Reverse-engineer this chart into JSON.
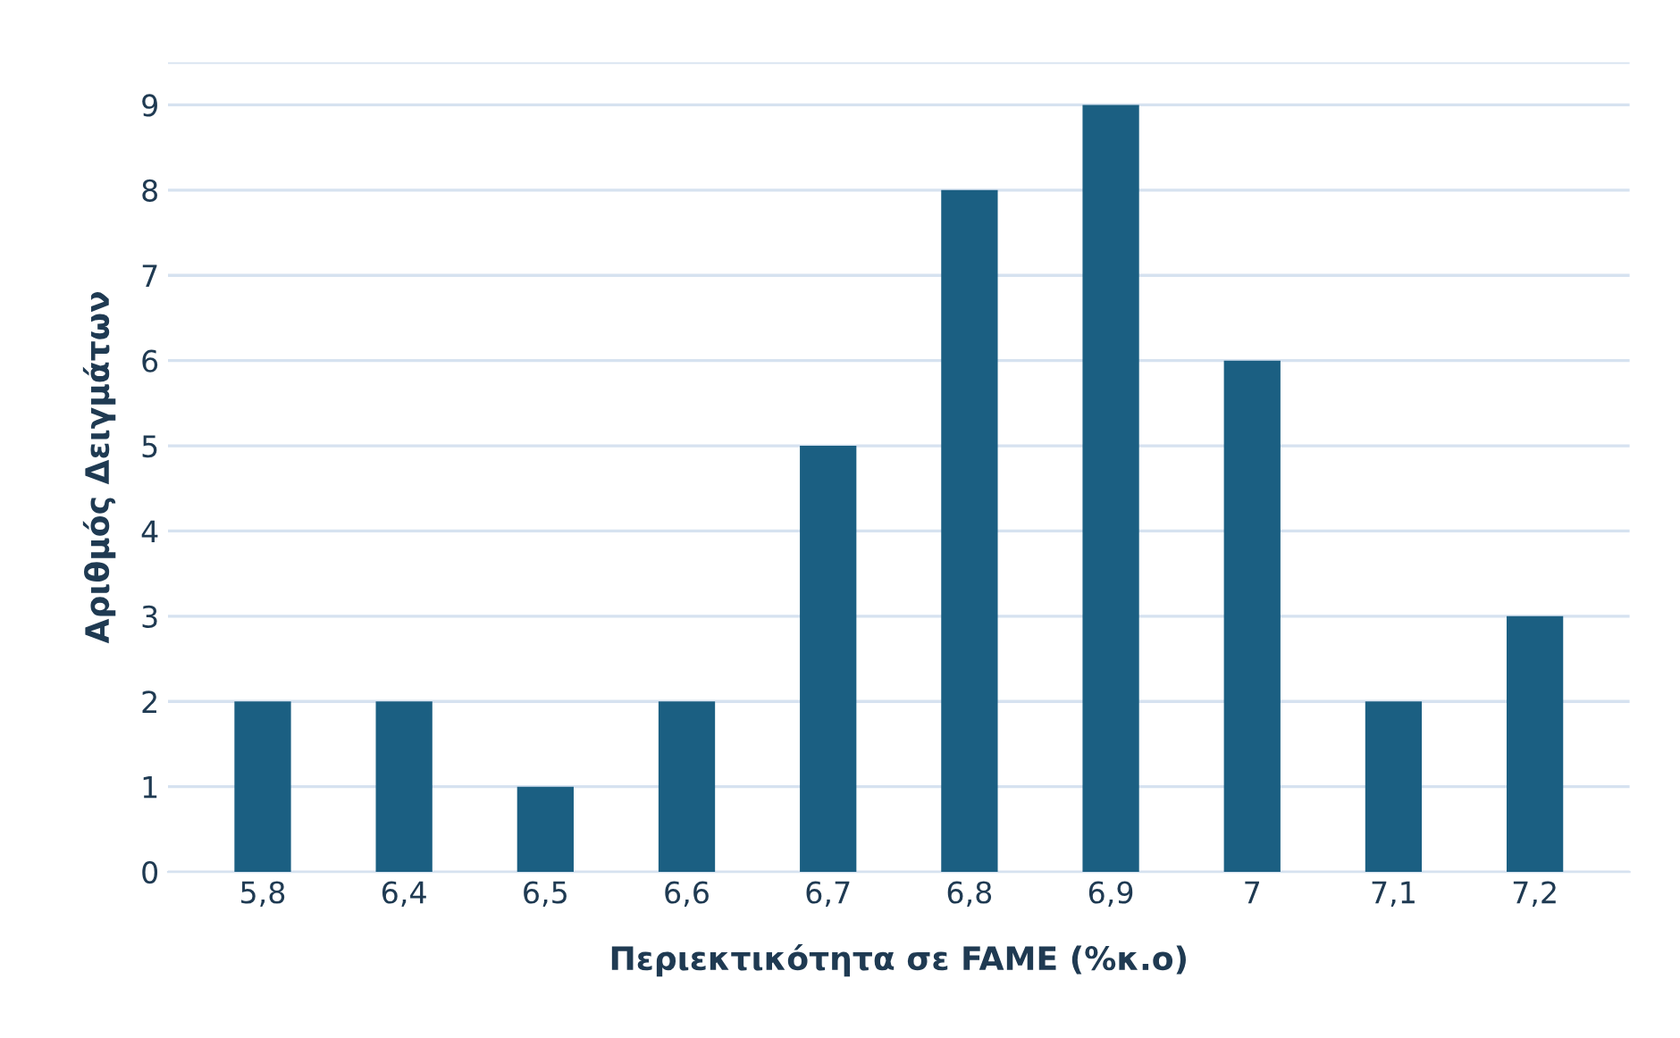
{
  "chart_data": {
    "type": "bar",
    "xlabel": "Περιεκτικότητα σε FAME (%κ.ο)",
    "ylabel": "Αριθμός Δειγμάτων",
    "categories": [
      "5,8",
      "6,4",
      "6,5",
      "6,6",
      "6,7",
      "6,8",
      "6,9",
      "7",
      "7,1",
      "7,2"
    ],
    "values": [
      2,
      2,
      1,
      2,
      5,
      8,
      9,
      6,
      2,
      3
    ],
    "color": "#1b5f82",
    "ylim": [
      0,
      9.5
    ],
    "yticks": [
      0,
      1,
      2,
      3,
      4,
      5,
      6,
      7,
      8,
      9,
      {
        "value": 9.5,
        "label": null
      }
    ],
    "grid": "y"
  }
}
